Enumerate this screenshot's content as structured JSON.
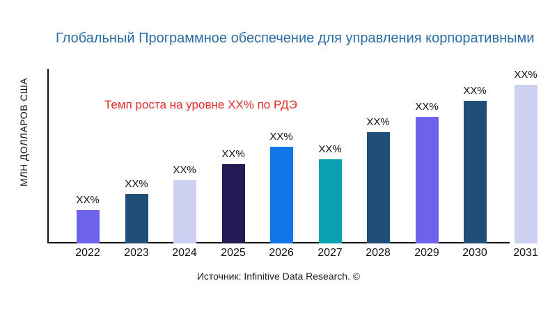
{
  "header": {
    "title": "Глобальный Программное обеспечение для управления корпоративными"
  },
  "axes": {
    "y_label": "МЛН ДОЛЛАРОВ США"
  },
  "annotation": {
    "text": "Темп роста на уровне XX% по РДЭ",
    "color": "#e22c2c"
  },
  "source": {
    "text": "Источник: Infinitive Data Research. ©"
  },
  "colors": {
    "title_text": "#2e6da4",
    "axis_line": "#111111",
    "bar_label_text": "#111111"
  },
  "chart_data": {
    "type": "bar",
    "title": "Глобальный Программное обеспечение для управления корпоративными",
    "xlabel": "",
    "ylabel": "МЛН ДОЛЛАРОВ США",
    "grid": false,
    "legend": "none",
    "annotation": "Темп роста на уровне XX% по РДЭ",
    "categories": [
      "2022",
      "2023",
      "2024",
      "2025",
      "2026",
      "2027",
      "2028",
      "2029",
      "2030",
      "2031"
    ],
    "bar_value_labels": [
      "XX%",
      "XX%",
      "XX%",
      "XX%",
      "XX%",
      "XX%",
      "XX%",
      "XX%",
      "XX%",
      "XX%"
    ],
    "values_relative_pct_of_max": [
      21,
      31,
      40,
      50,
      61,
      53,
      70,
      80,
      90,
      100
    ],
    "bar_colors": [
      "#6c63ea",
      "#1f4e79",
      "#cdd0f1",
      "#211a55",
      "#1177e8",
      "#09a1b1",
      "#1f4e79",
      "#6c63ea",
      "#1f4e79",
      "#cdd0f1"
    ]
  }
}
